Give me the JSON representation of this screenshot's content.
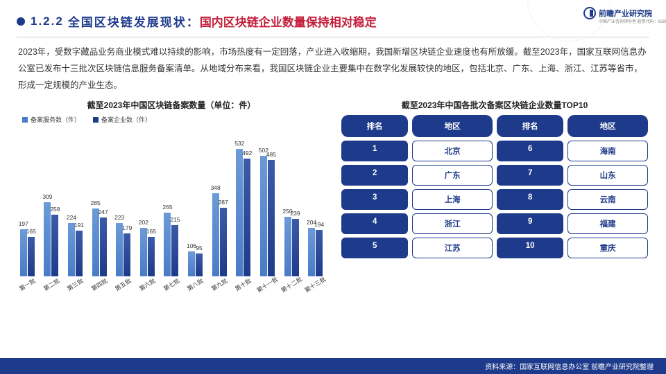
{
  "header": {
    "section_number": "1.2.2",
    "title_blue": "全国区块链发展现状：",
    "title_red": "国内区块链企业数量保持相对稳定",
    "logo_text": "前瞻产业研究院",
    "logo_sub": "中国产业咨询领导者 股票代码：839599"
  },
  "body_text": "2023年，受数字藏品业务商业模式难以持续的影响，市场热度有一定回落，产业进入收缩期，我国新增区块链企业速度也有所放缓。截至2023年，国家互联网信息办公室已发布十三批次区块链信息服务备案清单。从地域分布来看，我国区块链企业主要集中在数字化发展较快的地区，包括北京、广东、上海、浙江、江苏等省市，形成一定规模的产业生态。",
  "chart": {
    "title": "截至2023年中国区块链备案数量（单位：件）",
    "type": "bar",
    "legend": [
      {
        "label": "备案服务数（件）",
        "color": "#4a7bc8"
      },
      {
        "label": "备案企业数（件）",
        "color": "#1e3a8a"
      }
    ],
    "categories": [
      "第一批",
      "第二批",
      "第三批",
      "第四批",
      "第五批",
      "第六批",
      "第七批",
      "第八批",
      "第九批",
      "第十批",
      "第十一批",
      "第十二批",
      "第十三批"
    ],
    "series1_color": "#4a7bc8",
    "series2_color": "#1e3a8a",
    "gradient_top": "#6b9bd8",
    "ymax": 560,
    "data": [
      {
        "s1": 197,
        "s2": 165
      },
      {
        "s1": 309,
        "s2": 258
      },
      {
        "s1": 224,
        "s2": 191
      },
      {
        "s1": 285,
        "s2": 247
      },
      {
        "s1": 223,
        "s2": 179
      },
      {
        "s1": 202,
        "s2": 165
      },
      {
        "s1": 265,
        "s2": 215
      },
      {
        "s1": 106,
        "s2": 95
      },
      {
        "s1": 348,
        "s2": 287
      },
      {
        "s1": 532,
        "s2": 492
      },
      {
        "s1": 502,
        "s2": 485
      },
      {
        "s1": 250,
        "s2": 239
      },
      {
        "s1": 204,
        "s2": 194
      }
    ]
  },
  "table": {
    "title": "截至2023年中国各批次备案区块链企业数量TOP10",
    "headers": [
      "排名",
      "地区",
      "排名",
      "地区"
    ],
    "header_bg": "#1e3a8a",
    "rank_bg": "#1e3a8a",
    "region_border": "#1e3a8a",
    "rows": [
      {
        "r1": "1",
        "a1": "北京",
        "r2": "6",
        "a2": "海南"
      },
      {
        "r1": "2",
        "a1": "广东",
        "r2": "7",
        "a2": "山东"
      },
      {
        "r1": "3",
        "a1": "上海",
        "r2": "8",
        "a2": "云南"
      },
      {
        "r1": "4",
        "a1": "浙江",
        "r2": "9",
        "a2": "福建"
      },
      {
        "r1": "5",
        "a1": "江苏",
        "r2": "10",
        "a2": "重庆"
      }
    ]
  },
  "footer": "资料来源：国家互联网信息办公室 前瞻产业研究院整理"
}
